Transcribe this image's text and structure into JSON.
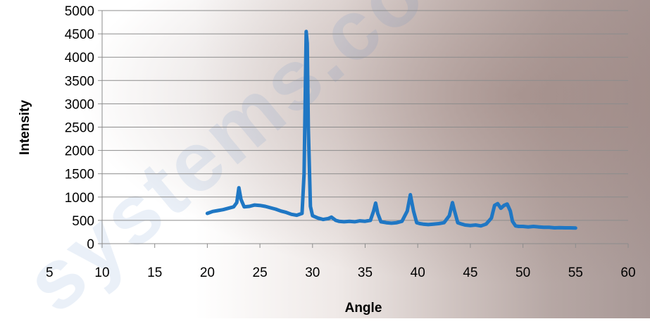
{
  "chart_data": {
    "type": "line",
    "xlabel": "Angle",
    "ylabel": "Intensity",
    "xlim": [
      5,
      60
    ],
    "ylim": [
      0,
      5000
    ],
    "x_ticks": [
      5,
      10,
      15,
      20,
      25,
      30,
      35,
      40,
      45,
      50,
      55,
      60
    ],
    "x_tick_labels": [
      "5",
      "10",
      "15",
      "20",
      "25",
      "30",
      "35",
      "40",
      "45",
      "50",
      "55",
      "60"
    ],
    "y_ticks": [
      0,
      500,
      1000,
      1500,
      2000,
      2500,
      3000,
      3500,
      4000,
      4500,
      5000
    ],
    "y_tick_labels": [
      "0",
      "500",
      "1000",
      "1500",
      "2000",
      "2500",
      "3000",
      "3500",
      "4000",
      "4500",
      "5000"
    ],
    "grid": "horizontal",
    "line_color": "#1f77c4",
    "series": [
      {
        "x": [
          20.0,
          20.5,
          21.0,
          21.5,
          22.0,
          22.5,
          22.8,
          23.0,
          23.2,
          23.5,
          24.0,
          24.5,
          25.0,
          25.5,
          26.0,
          26.5,
          27.0,
          27.5,
          28.0,
          28.5,
          29.0,
          29.2,
          29.4,
          29.5,
          29.6,
          29.8,
          30.0,
          30.5,
          31.0,
          31.5,
          31.8,
          32.2,
          32.5,
          33.0,
          33.5,
          34.0,
          34.5,
          35.0,
          35.5,
          35.8,
          36.0,
          36.2,
          36.5,
          37.0,
          37.5,
          38.0,
          38.5,
          39.0,
          39.3,
          39.6,
          39.9,
          40.2,
          40.5,
          41.0,
          41.5,
          42.0,
          42.5,
          43.0,
          43.3,
          43.5,
          43.8,
          44.2,
          44.5,
          45.0,
          45.5,
          46.0,
          46.5,
          47.0,
          47.3,
          47.6,
          47.9,
          48.2,
          48.5,
          48.8,
          49.0,
          49.3,
          49.6,
          50.0,
          50.5,
          51.0,
          51.5,
          52.0,
          52.5,
          53.0,
          53.5,
          54.0,
          54.5,
          55.0
        ],
        "y": [
          650,
          690,
          710,
          730,
          760,
          790,
          880,
          1200,
          950,
          790,
          800,
          830,
          820,
          800,
          770,
          740,
          700,
          670,
          630,
          610,
          650,
          1500,
          4550,
          4300,
          2500,
          800,
          600,
          550,
          520,
          540,
          570,
          500,
          480,
          470,
          480,
          470,
          490,
          480,
          500,
          700,
          870,
          650,
          470,
          450,
          440,
          450,
          480,
          700,
          1050,
          700,
          450,
          430,
          420,
          410,
          420,
          430,
          450,
          600,
          880,
          700,
          450,
          420,
          400,
          390,
          400,
          380,
          420,
          550,
          820,
          860,
          760,
          820,
          850,
          700,
          480,
          380,
          370,
          370,
          360,
          370,
          360,
          350,
          350,
          340,
          345,
          340,
          340,
          335
        ]
      }
    ]
  }
}
